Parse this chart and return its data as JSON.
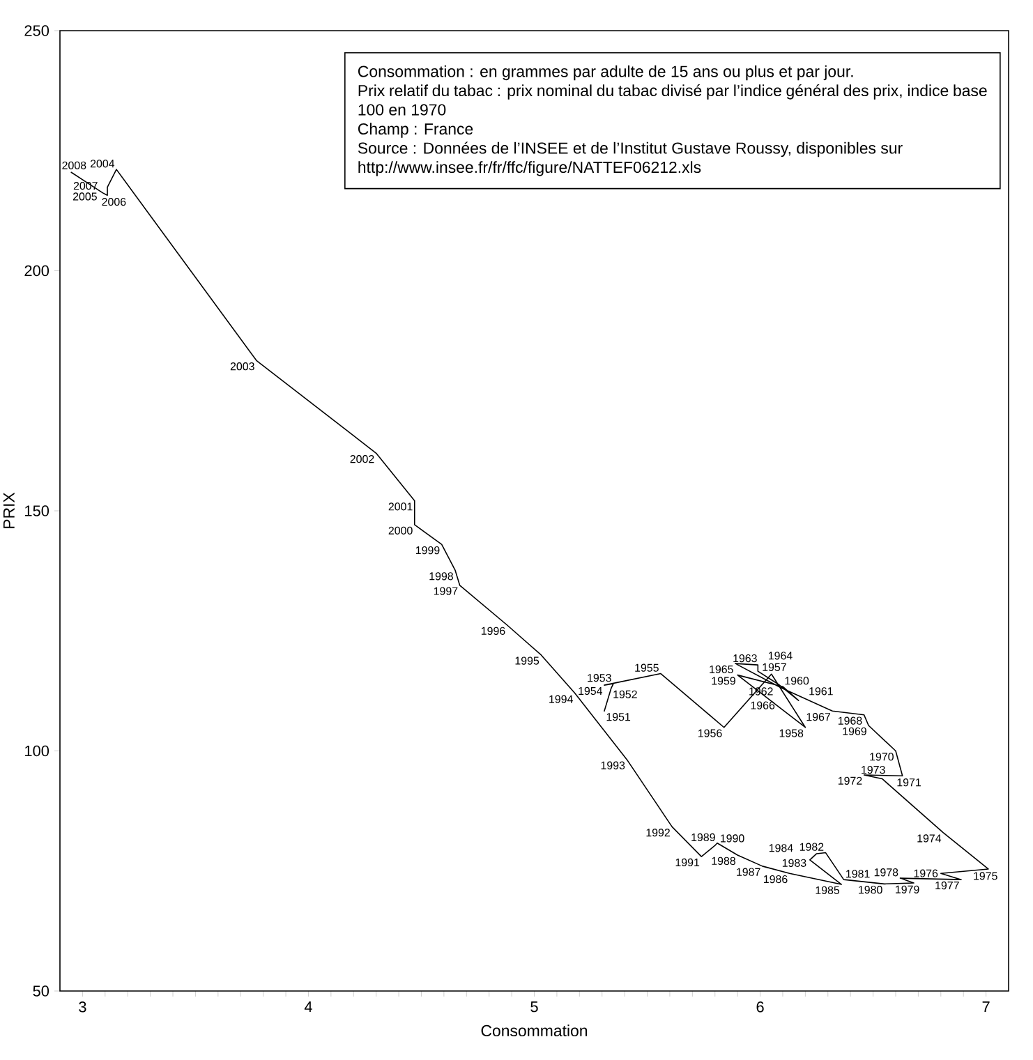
{
  "chart_data": {
    "type": "line",
    "xlabel": "Consommation",
    "ylabel": "PRIX",
    "x": [
      5.31,
      5.34,
      5.35,
      5.31,
      5.56,
      5.84,
      6.05,
      6.2,
      5.9,
      6.1,
      6.17,
      6.08,
      5.99,
      5.99,
      5.89,
      6.09,
      6.32,
      6.46,
      6.48,
      6.6,
      6.63,
      6.46,
      6.54,
      6.81,
      7.01,
      6.8,
      6.89,
      6.62,
      6.68,
      6.55,
      6.37,
      6.29,
      6.25,
      6.22,
      6.36,
      6.13,
      6.01,
      5.9,
      5.81,
      5.8,
      5.74,
      5.61,
      5.41,
      5.18,
      5.03,
      4.88,
      4.67,
      4.65,
      4.59,
      4.47,
      4.47,
      4.3,
      3.77,
      3.15,
      3.11,
      3.11,
      3.09,
      2.95
    ],
    "series": [
      {
        "color": "#000000",
        "values": [
          108.3,
          113.0,
          114.0,
          113.7,
          116.1,
          104.9,
          116.0,
          104.9,
          115.8,
          113.4,
          110.5,
          113.9,
          116.6,
          117.9,
          118.2,
          113.2,
          108.3,
          107.5,
          105.3,
          100.0,
          94.8,
          95.0,
          94.2,
          83.0,
          75.4,
          74.5,
          73.2,
          73.5,
          72.5,
          72.3,
          73.2,
          78.8,
          78.6,
          77.3,
          72.2,
          74.5,
          76.0,
          78.3,
          80.8,
          80.3,
          78.0,
          84.2,
          98.2,
          112.0,
          120.0,
          126.2,
          134.5,
          137.6,
          143.0,
          147.1,
          152.1,
          162.0,
          181.3,
          221.1,
          217.4,
          215.7,
          216.2,
          220.5
        ]
      }
    ],
    "xlim": [
      2.9,
      7.1
    ],
    "ylim": [
      50,
      250
    ],
    "xticks": [
      3,
      {
        "value": 3.1,
        "label": null
      },
      {
        "value": 3.2,
        "label": null
      },
      {
        "value": 3.3,
        "label": null
      },
      {
        "value": 3.4,
        "label": null
      },
      {
        "value": 3.5,
        "label": null
      },
      {
        "value": 3.6,
        "label": null
      },
      {
        "value": 3.7,
        "label": null
      },
      {
        "value": 3.8,
        "label": null
      },
      {
        "value": 3.9,
        "label": null
      },
      4,
      {
        "value": 4.1,
        "label": null
      },
      {
        "value": 4.2,
        "label": null
      },
      {
        "value": 4.3,
        "label": null
      },
      {
        "value": 4.4,
        "label": null
      },
      {
        "value": 4.5,
        "label": null
      },
      {
        "value": 4.6,
        "label": null
      },
      {
        "value": 4.7,
        "label": null
      },
      {
        "value": 4.8,
        "label": null
      },
      {
        "value": 4.9,
        "label": null
      },
      5,
      {
        "value": 5.1,
        "label": null
      },
      {
        "value": 5.2,
        "label": null
      },
      {
        "value": 5.3,
        "label": null
      },
      {
        "value": 5.4,
        "label": null
      },
      {
        "value": 5.5,
        "label": null
      },
      {
        "value": 5.6,
        "label": null
      },
      {
        "value": 5.7,
        "label": null
      },
      {
        "value": 5.8,
        "label": null
      },
      {
        "value": 5.9,
        "label": null
      },
      6,
      {
        "value": 6.1,
        "label": null
      },
      {
        "value": 6.2,
        "label": null
      },
      {
        "value": 6.3,
        "label": null
      },
      {
        "value": 6.4,
        "label": null
      },
      {
        "value": 6.5,
        "label": null
      },
      {
        "value": 6.6,
        "label": null
      },
      {
        "value": 6.7,
        "label": null
      },
      {
        "value": 6.8,
        "label": null
      },
      {
        "value": 6.9,
        "label": null
      },
      7
    ],
    "yticks": [
      50,
      100,
      150,
      200,
      250
    ],
    "annotations": [
      "Consommation : en grammes par adulte de 15 ans ou plus et par jour.",
      "Prix relatif du tabac : prix nominal du tabac divisé par l’indice général des prix, indice base 100 en 1970",
      "Champ : France",
      "Source : Données de l’INSEE et de l’Institut Gustave Roussy, disponibles sur",
      "http://www.insee.fr/fr/ffc/figure/NATTEF06212.xls",
      {
        "text": "1951",
        "x": 5.31,
        "y": 108.3
      },
      {
        "text": "1952",
        "x": 5.34,
        "y": 113.0
      },
      {
        "text": "1953",
        "x": 5.35,
        "y": 114.0
      },
      {
        "text": "1954",
        "x": 5.31,
        "y": 113.7
      },
      {
        "text": "1955",
        "x": 5.56,
        "y": 116.1
      },
      {
        "text": "1956",
        "x": 5.84,
        "y": 104.9
      },
      {
        "text": "1957",
        "x": 6.05,
        "y": 116.0
      },
      {
        "text": "1958",
        "x": 6.2,
        "y": 104.9
      },
      {
        "text": "1959",
        "x": 5.9,
        "y": 115.8
      },
      {
        "text": "1960",
        "x": 6.1,
        "y": 113.4
      },
      {
        "text": "1961",
        "x": 6.17,
        "y": 110.5
      },
      {
        "text": "1962",
        "x": 6.08,
        "y": 113.9
      },
      {
        "text": "1963",
        "x": 5.99,
        "y": 116.6
      },
      {
        "text": "1964",
        "x": 5.99,
        "y": 117.9
      },
      {
        "text": "1965",
        "x": 5.89,
        "y": 118.2
      },
      {
        "text": "1966",
        "x": 6.09,
        "y": 113.2
      },
      {
        "text": "1967",
        "x": 6.32,
        "y": 108.3
      },
      {
        "text": "1968",
        "x": 6.46,
        "y": 107.5
      },
      {
        "text": "1969",
        "x": 6.48,
        "y": 105.3
      },
      {
        "text": "1970",
        "x": 6.6,
        "y": 100.0
      },
      {
        "text": "1971",
        "x": 6.63,
        "y": 94.8
      },
      {
        "text": "1972",
        "x": 6.46,
        "y": 95.0
      },
      {
        "text": "1973",
        "x": 6.54,
        "y": 94.2
      },
      {
        "text": "1974",
        "x": 6.81,
        "y": 83.0
      },
      {
        "text": "1975",
        "x": 7.01,
        "y": 75.4
      },
      {
        "text": "1976",
        "x": 6.8,
        "y": 74.5
      },
      {
        "text": "1977",
        "x": 6.89,
        "y": 73.2
      },
      {
        "text": "1978",
        "x": 6.62,
        "y": 73.5
      },
      {
        "text": "1979",
        "x": 6.68,
        "y": 72.5
      },
      {
        "text": "1980",
        "x": 6.55,
        "y": 72.3
      },
      {
        "text": "1981",
        "x": 6.37,
        "y": 73.2
      },
      {
        "text": "1982",
        "x": 6.29,
        "y": 78.8
      },
      {
        "text": "1983",
        "x": 6.25,
        "y": 78.6
      },
      {
        "text": "1984",
        "x": 6.22,
        "y": 77.3
      },
      {
        "text": "1985",
        "x": 6.36,
        "y": 72.2
      },
      {
        "text": "1986",
        "x": 6.13,
        "y": 74.5
      },
      {
        "text": "1987",
        "x": 6.01,
        "y": 76.0
      },
      {
        "text": "1988",
        "x": 5.9,
        "y": 78.3
      },
      {
        "text": "1989",
        "x": 5.81,
        "y": 80.8
      },
      {
        "text": "1990",
        "x": 5.8,
        "y": 80.3
      },
      {
        "text": "1991",
        "x": 5.74,
        "y": 78.0
      },
      {
        "text": "1992",
        "x": 5.61,
        "y": 84.2
      },
      {
        "text": "1993",
        "x": 5.41,
        "y": 98.2
      },
      {
        "text": "1994",
        "x": 5.18,
        "y": 112.0
      },
      {
        "text": "1995",
        "x": 5.03,
        "y": 120.0
      },
      {
        "text": "1996",
        "x": 4.88,
        "y": 126.2
      },
      {
        "text": "1997",
        "x": 4.67,
        "y": 134.5
      },
      {
        "text": "1998",
        "x": 4.65,
        "y": 137.6
      },
      {
        "text": "1999",
        "x": 4.59,
        "y": 143.0
      },
      {
        "text": "2000",
        "x": 4.47,
        "y": 147.1
      },
      {
        "text": "2001",
        "x": 4.47,
        "y": 152.1
      },
      {
        "text": "2002",
        "x": 4.3,
        "y": 162.0
      },
      {
        "text": "2003",
        "x": 3.77,
        "y": 181.3
      },
      {
        "text": "2004",
        "x": 3.15,
        "y": 221.1
      },
      {
        "text": "2005",
        "x": 3.11,
        "y": 217.4
      },
      {
        "text": "2006",
        "x": 3.11,
        "y": 215.7
      },
      {
        "text": "2007",
        "x": 3.09,
        "y": 216.2
      },
      {
        "text": "2008",
        "x": 2.95,
        "y": 220.5
      }
    ]
  }
}
